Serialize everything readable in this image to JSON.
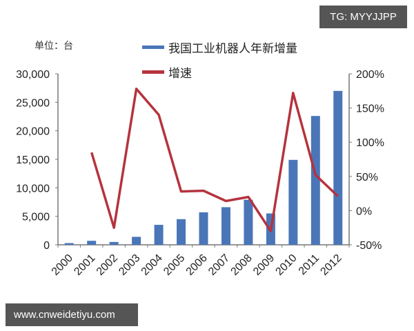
{
  "watermarks": {
    "top_right": "TG: MYYJJPP",
    "bottom_left": "www.cnweidetiyu.com"
  },
  "chart_data": {
    "type": "bar",
    "title": "",
    "unit_label": "单位：台",
    "categories": [
      "2000",
      "2001",
      "2002",
      "2003",
      "2004",
      "2005",
      "2006",
      "2007",
      "2008",
      "2009",
      "2010",
      "2011",
      "2012"
    ],
    "series": [
      {
        "name": "我国工业机器人年新增量",
        "type": "bar",
        "axis": "left",
        "color": "#4a76b8",
        "values": [
          300,
          700,
          500,
          1400,
          3500,
          4500,
          5700,
          6600,
          7900,
          5500,
          14900,
          22600,
          27000
        ]
      },
      {
        "name": "增速",
        "type": "line",
        "axis": "right",
        "color": "#b5333d",
        "values": [
          null,
          85,
          -25,
          178,
          140,
          28,
          29,
          14,
          20,
          -30,
          172,
          52,
          21
        ]
      }
    ],
    "left_axis": {
      "ylim": [
        0,
        30000
      ],
      "ticks": [
        "0",
        "5,000",
        "10,000",
        "15,000",
        "20,000",
        "25,000",
        "30,000"
      ]
    },
    "right_axis": {
      "ylim": [
        -50,
        200
      ],
      "ticks": [
        "-50%",
        "0%",
        "50%",
        "100%",
        "150%",
        "200%"
      ]
    },
    "xlabel": "",
    "ylabel": "",
    "grid": false,
    "legend_position": "top"
  }
}
